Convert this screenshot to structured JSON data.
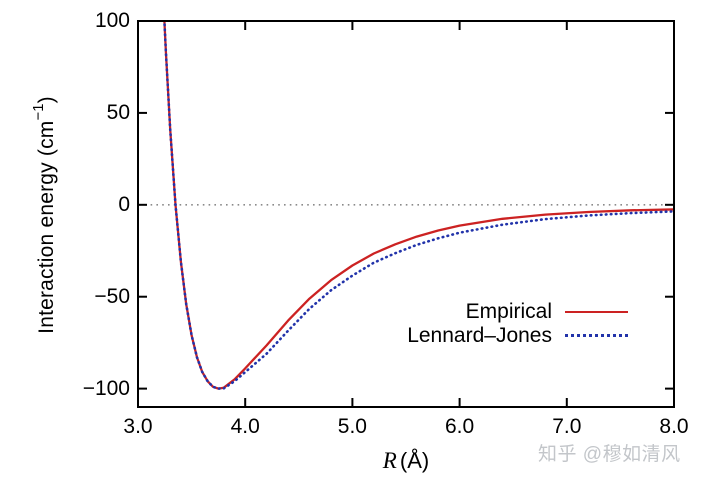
{
  "figure": {
    "y_axis": {
      "title_main": "Interaction energy (cm",
      "title_sup": "−1",
      "title_close": ")",
      "ticks": [
        {
          "label": "100",
          "value": 100
        },
        {
          "label": "50",
          "value": 50
        },
        {
          "label": "0",
          "value": 0
        },
        {
          "label": "−50",
          "value": -50
        },
        {
          "label": "−100",
          "value": -100
        }
      ]
    },
    "x_axis": {
      "title_var": "R",
      "title_unit": "(Å)",
      "ticks": [
        {
          "label": "3.0",
          "value": 3.0
        },
        {
          "label": "4.0",
          "value": 4.0
        },
        {
          "label": "5.0",
          "value": 5.0
        },
        {
          "label": "6.0",
          "value": 6.0
        },
        {
          "label": "7.0",
          "value": 7.0
        },
        {
          "label": "8.0",
          "value": 8.0
        }
      ]
    },
    "legend": {
      "items": [
        {
          "label": "Empirical",
          "color": "#cc2222",
          "line_style": "solid"
        },
        {
          "label": "Lennard–Jones",
          "color": "#2233aa",
          "line_style": "dotted"
        }
      ]
    },
    "colors": {
      "frame": "#000000",
      "zero_line": "#8a8a8a",
      "empirical": "#cc2222",
      "lennard_jones": "#2233aa",
      "watermark": "#c3c6ca"
    },
    "watermark": "知乎 @穆如清风"
  },
  "chart_data": {
    "type": "line",
    "title": "",
    "xlabel": "R (Å)",
    "ylabel": "Interaction energy (cm−1)",
    "xlim": [
      3.0,
      8.0
    ],
    "ylim": [
      -110,
      100
    ],
    "grid": false,
    "legend_position": "inside lower right",
    "x": [
      3.2,
      3.22,
      3.24,
      3.26,
      3.3,
      3.35,
      3.4,
      3.45,
      3.5,
      3.55,
      3.6,
      3.65,
      3.7,
      3.75,
      3.8,
      3.9,
      4.0,
      4.2,
      4.4,
      4.6,
      4.8,
      5.0,
      5.2,
      5.4,
      5.6,
      5.8,
      6.0,
      6.4,
      6.8,
      7.2,
      7.6,
      8.0
    ],
    "series": [
      {
        "name": "Empirical",
        "style": "solid",
        "color": "#cc2222",
        "values": [
          166,
          136,
          108,
          83,
          41,
          0,
          -31,
          -54,
          -71,
          -83,
          -91,
          -96,
          -99,
          -100,
          -99.5,
          -95,
          -89,
          -76.5,
          -63,
          -51,
          -41,
          -33,
          -26.5,
          -21.5,
          -17.3,
          -14,
          -11.3,
          -7.6,
          -5.3,
          -3.9,
          -3.0,
          -2.5
        ]
      },
      {
        "name": "Lennard-Jones",
        "style": "dotted",
        "color": "#2233aa",
        "values": [
          166,
          136,
          108,
          83,
          41,
          0,
          -31,
          -54,
          -71,
          -83,
          -91,
          -96,
          -99,
          -100,
          -99.8,
          -96,
          -91,
          -81,
          -68.5,
          -56.5,
          -46.5,
          -38.5,
          -31.5,
          -26.3,
          -21.8,
          -18.2,
          -15.2,
          -10.8,
          -7.8,
          -5.8,
          -4.5,
          -3.6
        ]
      }
    ],
    "annotations": {
      "well_minimum": {
        "R": 3.75,
        "energy": -100
      },
      "zero_crossing_R": 3.35
    },
    "reference_lines": [
      {
        "axis": "y",
        "value": 0,
        "style": "dotted",
        "color": "#8a8a8a"
      }
    ]
  }
}
